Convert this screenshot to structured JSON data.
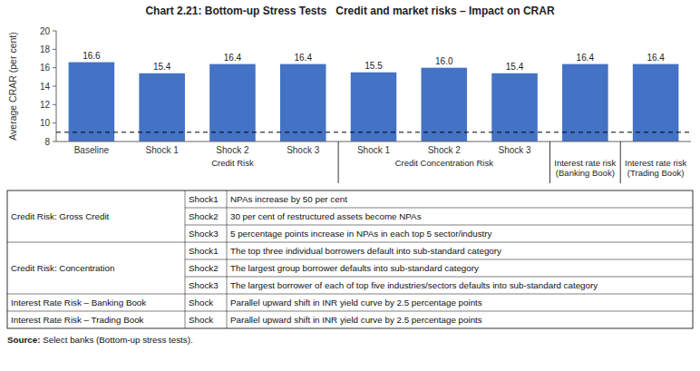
{
  "chart_data": {
    "type": "bar",
    "title": "Chart 2.21: Bottom-up Stress Tests   Credit and market risks – Impact on CRAR",
    "y_label": "Average CRAR (per cent)",
    "categories": [
      "Baseline",
      "Shock 1",
      "Shock 2",
      "Shock 3",
      "Shock 1",
      "Shock 2",
      "Shock 3",
      null,
      null
    ],
    "category_groups": [
      null,
      "Credit Risk",
      "Credit Risk",
      "Credit Risk",
      "Credit Concentration Risk",
      "Credit Concentration Risk",
      "Credit Concentration Risk",
      "Interest rate risk\n(Banking Book)",
      "Interest rate risk\n(Trading Book)"
    ],
    "values": [
      16.6,
      15.4,
      16.4,
      16.4,
      15.5,
      16.0,
      15.4,
      16.4,
      16.4
    ],
    "value_labels": [
      "16.6",
      "15.4",
      "16.4",
      "16.4",
      "15.5",
      "16.0",
      "15.4",
      "16.4",
      "16.4"
    ],
    "data_labels": true,
    "color": "#4472C4",
    "ylim": [
      8,
      20
    ],
    "yticks": [
      8,
      10,
      12,
      14,
      16,
      18,
      20
    ],
    "grid": false,
    "reference_line": 9,
    "table": [
      {
        "label": "Credit Risk: Gross Credit",
        "rows": [
          [
            "Shock1",
            "NPAs increase by 50 per cent"
          ],
          [
            "Shock2",
            "30 per cent of restructured assets become NPAs"
          ],
          [
            "Shock3",
            "5 percentage points increase in NPAs in each top 5 sector/industry"
          ]
        ]
      },
      {
        "label": "Credit Risk: Concentration",
        "rows": [
          [
            "Shock1",
            "The top three individual borrowers default into sub-standard category"
          ],
          [
            "Shock2",
            "The largest group borrower defaults into sub-standard category"
          ],
          [
            "Shock3",
            "The largest borrower of each of top five industries/sectors defaults into sub-standard category"
          ]
        ]
      },
      {
        "label": "Interest Rate Risk – Banking Book",
        "rows": [
          [
            "Shock",
            "Parallel upward shift in INR yield curve by 2.5 percentage points"
          ]
        ]
      },
      {
        "label": "Interest Rate Risk – Trading Book",
        "rows": [
          [
            "Shock",
            "Parallel upward shift in INR yield curve by 2.5 percentage points"
          ]
        ]
      }
    ],
    "source": {
      "label": "Source:",
      "text": "Select banks (Bottom-up stress tests)."
    }
  }
}
